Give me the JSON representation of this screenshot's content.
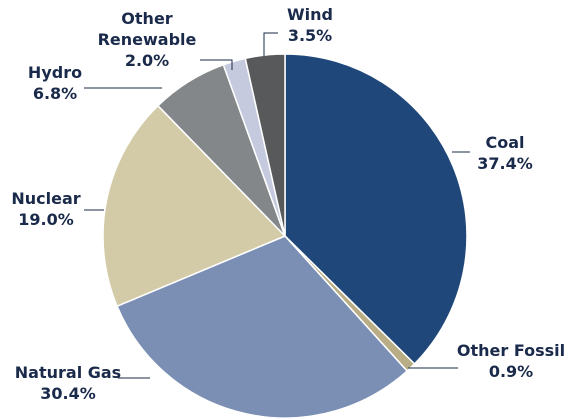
{
  "chart_data": {
    "type": "pie",
    "categories": [
      "Coal",
      "Other Fossil",
      "Natural Gas",
      "Nuclear",
      "Hydro",
      "Other Renewable",
      "Wind"
    ],
    "values": [
      37.4,
      0.9,
      30.4,
      19.0,
      6.8,
      2.0,
      3.5
    ],
    "value_labels": [
      "37.4%",
      "0.9%",
      "30.4%",
      "19.0%",
      "6.8%",
      "2.0%",
      "3.5%"
    ],
    "colors": [
      "#1f477a",
      "#b8ad85",
      "#7b8fb5",
      "#d3cba8",
      "#84878a",
      "#c5cade",
      "#58595b"
    ]
  }
}
